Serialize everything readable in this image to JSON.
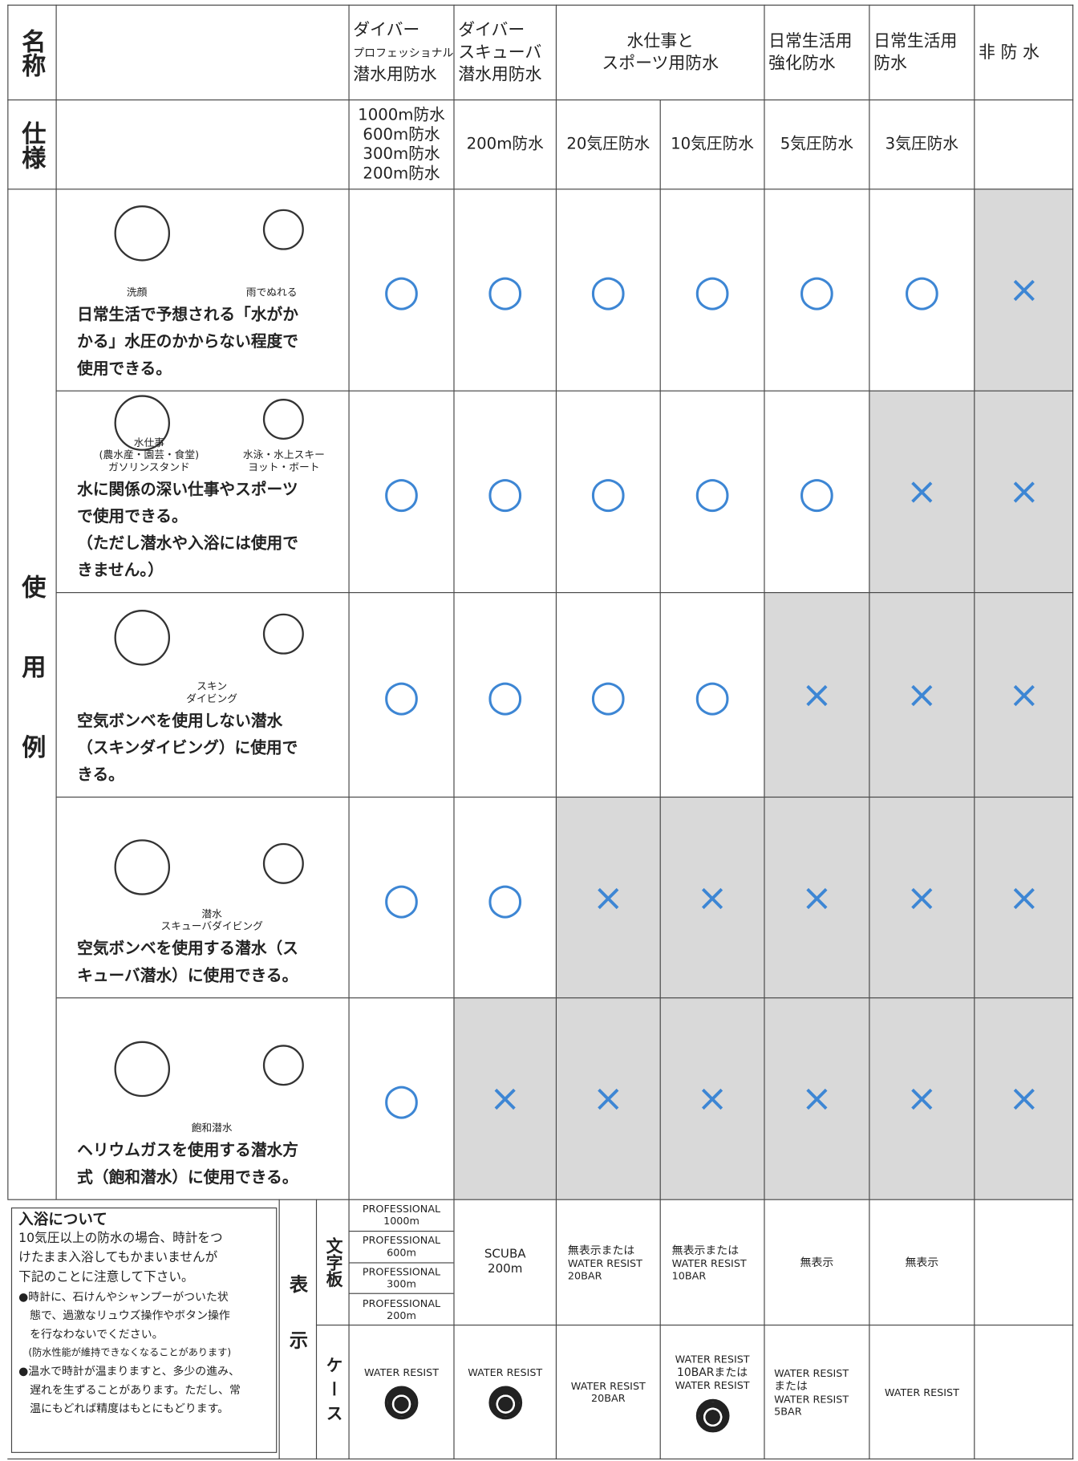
{
  "table": {
    "name_label": "名称",
    "spec_label": "仕様",
    "usage_label": "使用例",
    "names": [
      [
        "ダイバー",
        "プロフェッショナル",
        "潜水用防水"
      ],
      [
        "ダイバー",
        "スキューバ",
        "潜水用防水"
      ],
      [
        "水仕事と",
        "スポーツ用防水"
      ],
      [
        "日常生活用",
        "強化防水"
      ],
      [
        "日常生活用",
        "防水"
      ],
      [
        "非 防 水"
      ]
    ],
    "specs": [
      [
        "1000m防水",
        "600m防水",
        "300m防水",
        "200m防水"
      ],
      [
        "200m防水"
      ],
      [
        "20気圧防水"
      ],
      [
        "10気圧防水"
      ],
      [
        "5気圧防水"
      ],
      [
        "3気圧防水"
      ]
    ],
    "rows": [
      {
        "captions": [
          "洗顔",
          "雨でぬれる"
        ],
        "description": [
          "日常生活で予想される「水がか",
          "かる」水圧のかからない程度で",
          "使用できる。"
        ],
        "marks": [
          "○",
          "○",
          "○",
          "○",
          "○",
          "○",
          "×"
        ]
      },
      {
        "captions": [
          "水仕事",
          "(農水産・園芸・食堂)",
          "ガソリンスタンド",
          "水泳・水上スキー",
          "ヨット・ボート"
        ],
        "description": [
          "水に関係の深い仕事やスポーツ",
          "で使用できる。",
          "（ただし潜水や入浴には使用で",
          "きません。）"
        ],
        "marks": [
          "○",
          "○",
          "○",
          "○",
          "○",
          "×",
          "×"
        ]
      },
      {
        "captions": [
          "スキン",
          "ダイビング"
        ],
        "description": [
          "空気ボンベを使用しない潜水",
          "（スキンダイビング）に使用で",
          "きる。"
        ],
        "marks": [
          "○",
          "○",
          "○",
          "○",
          "×",
          "×",
          "×"
        ]
      },
      {
        "captions": [
          "潜水",
          "スキューバダイビング"
        ],
        "description": [
          "空気ボンベを使用する潜水（ス",
          "キューバ潜水）に使用できる。"
        ],
        "marks": [
          "○",
          "○",
          "×",
          "×",
          "×",
          "×",
          "×"
        ]
      },
      {
        "captions": [
          "飽和潜水"
        ],
        "description": [
          "ヘリウムガスを使用する潜水方",
          "式（飽和潜水）に使用できる。"
        ],
        "marks": [
          "○",
          "×",
          "×",
          "×",
          "×",
          "×",
          "×"
        ]
      }
    ],
    "bath_note": {
      "title": "入浴について",
      "lines": [
        "10気圧以上の防水の場合、時計をつ",
        "けたまま入浴してもかまいませんが",
        "下記のことに注意して下さい。"
      ],
      "bullets": [
        "●時計に、石けんやシャンプーがついた状",
        "　態で、過激なリュウズ操作やボタン操作",
        "　を行なわないでください。",
        "　(防水性能が維持できなくなることがあります)",
        "●温水で時計が温まりますと、多少の進み、",
        "　遅れを生ずることがあります。ただし、常",
        "　温にもどれば精度はもとにもどります。"
      ]
    },
    "display_label": "表示",
    "dial_label": "文字板",
    "case_label": "ケース",
    "dial": [
      [
        [
          "PROFESSIONAL",
          "1000m"
        ],
        [
          "PROFESSIONAL",
          "600m"
        ],
        [
          "PROFESSIONAL",
          "300m"
        ],
        [
          "PROFESSIONAL",
          "200m"
        ]
      ],
      [
        [
          "SCUBA",
          "200m"
        ]
      ],
      [
        [
          "無表示または",
          "WATER RESIST",
          "20BAR"
        ]
      ],
      [
        [
          "無表示または",
          "WATER RESIST",
          "10BAR"
        ]
      ],
      [
        [
          "無表示"
        ]
      ],
      [
        [
          "無表示"
        ]
      ]
    ],
    "case": [
      [
        "WATER RESIST"
      ],
      [
        "WATER RESIST"
      ],
      [
        "WATER RESIST",
        "20BAR"
      ],
      [
        "WATER RESIST",
        "10BARまたは",
        "WATER RESIST"
      ],
      [
        "WATER RESIST",
        "または",
        "WATER RESIST",
        "5BAR"
      ],
      [
        "WATER RESIST"
      ]
    ]
  }
}
